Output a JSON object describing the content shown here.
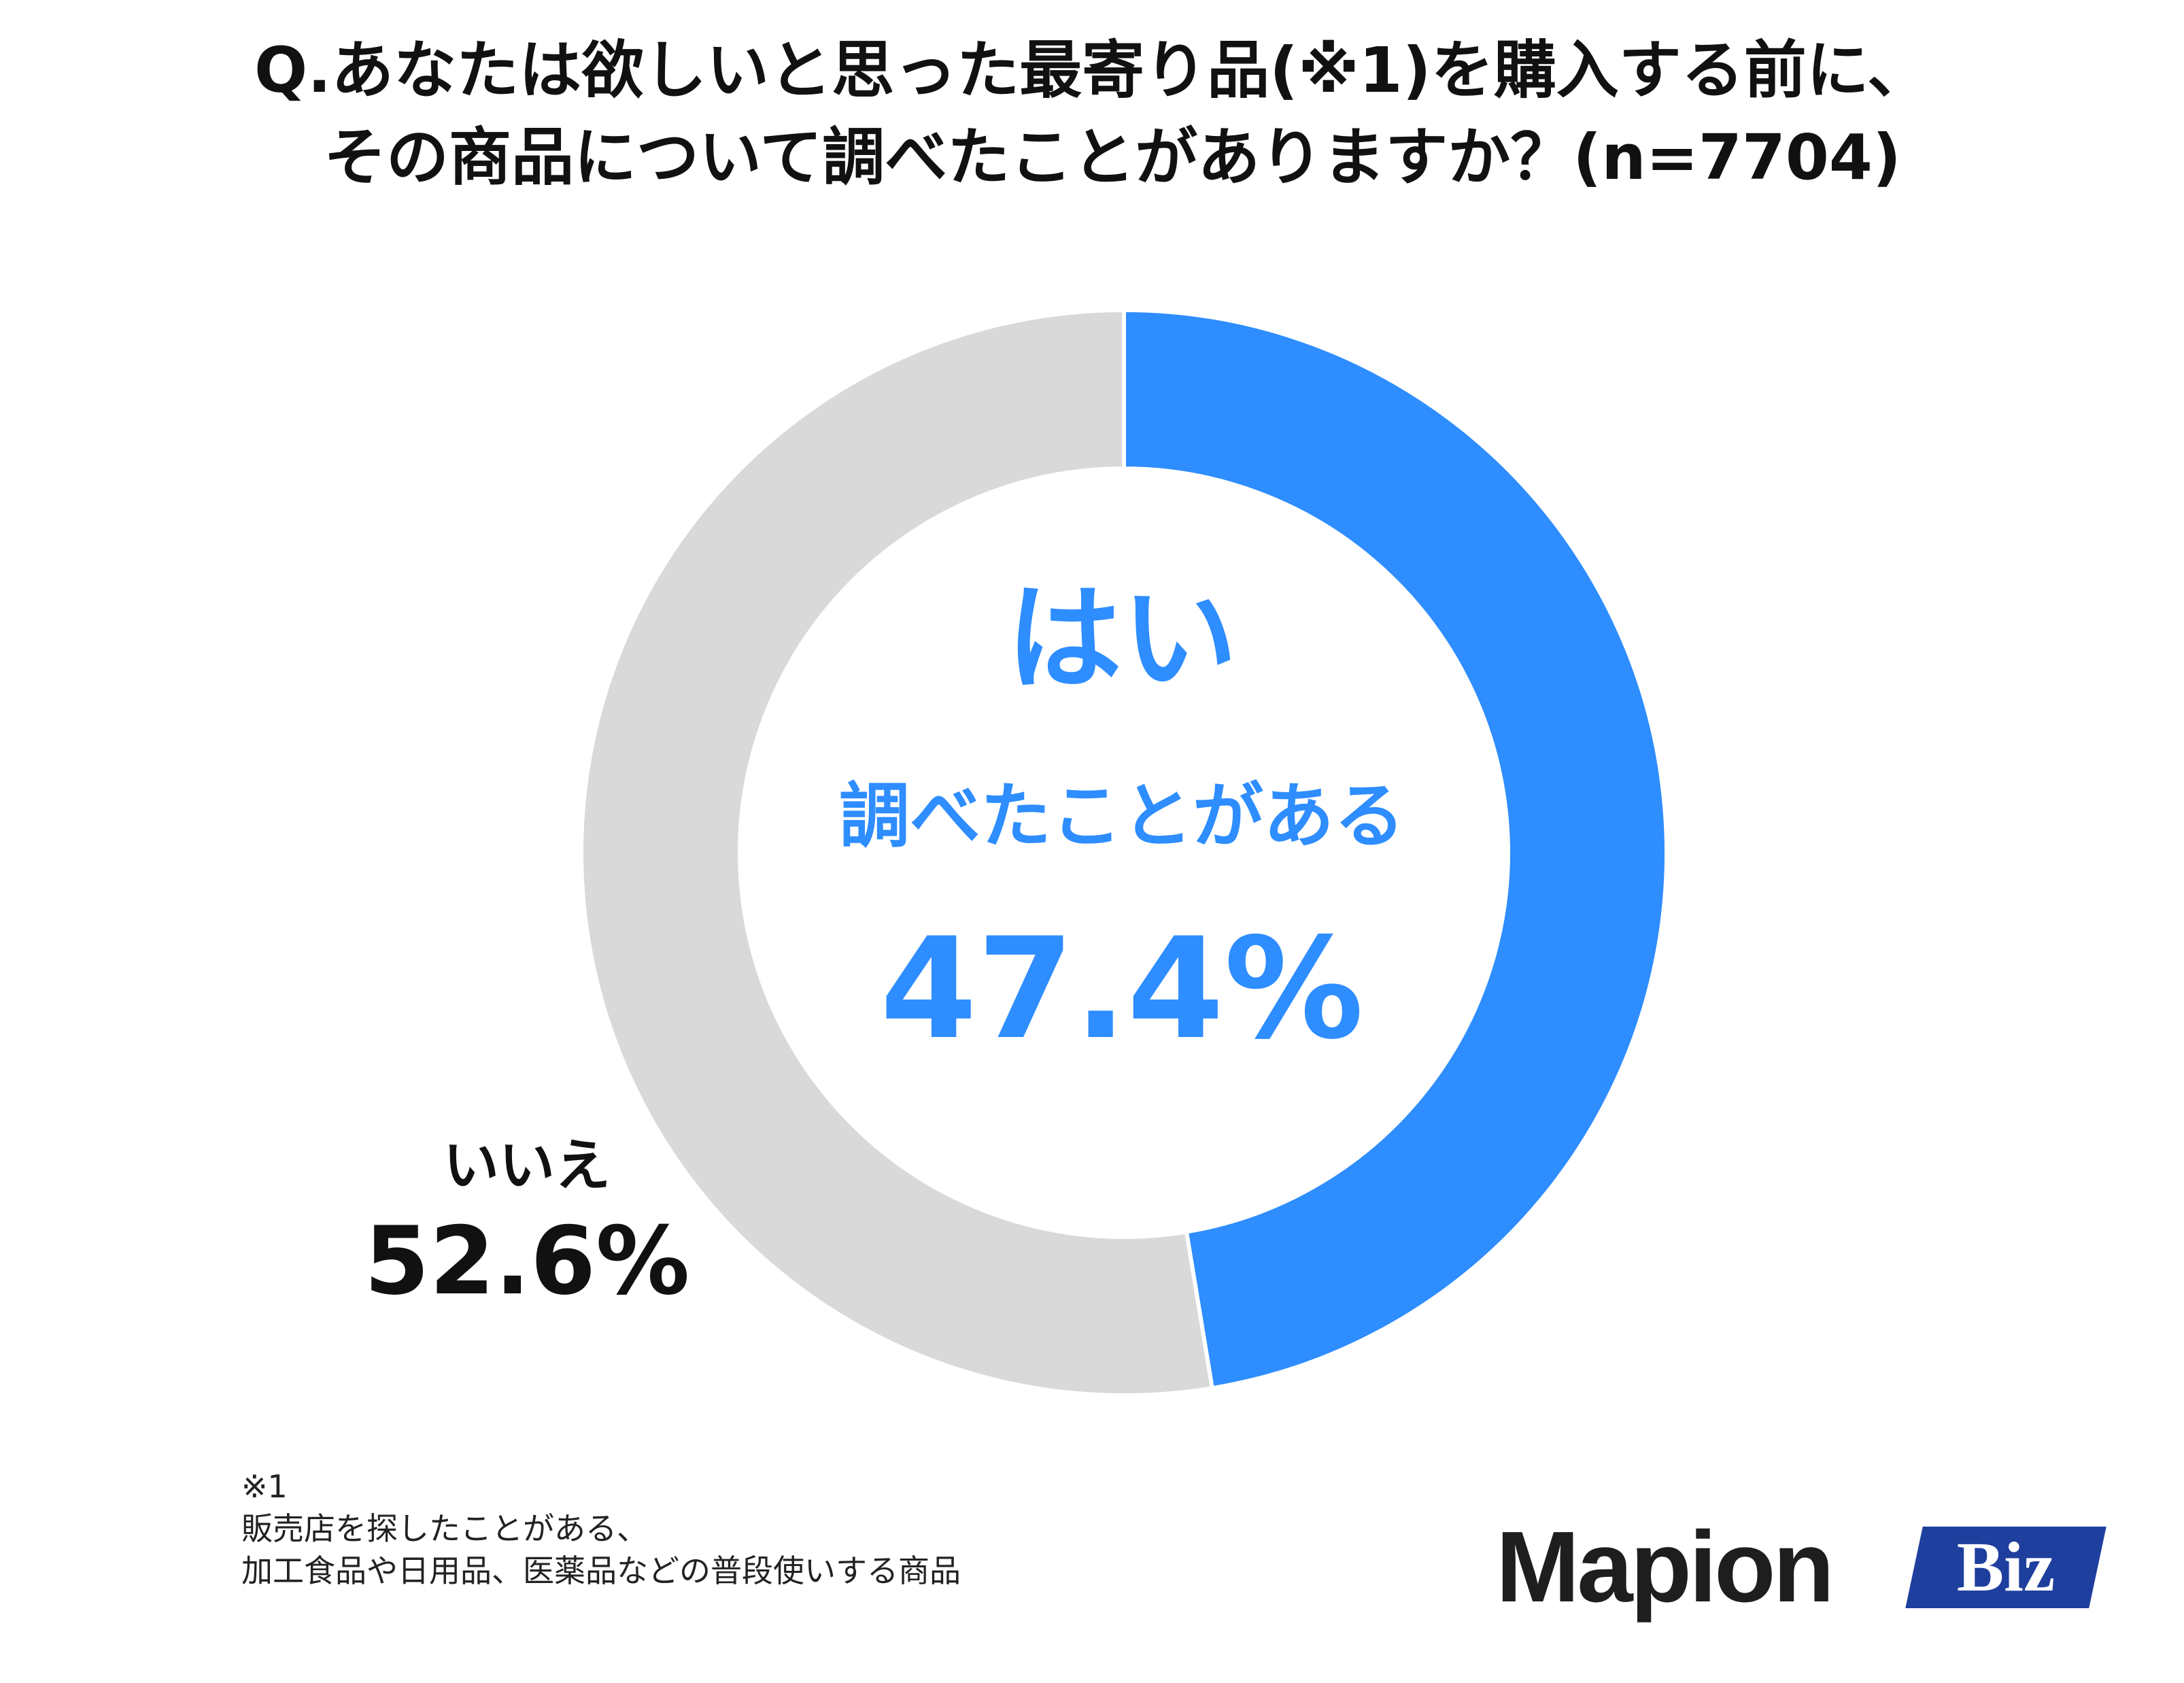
{
  "title": {
    "line1": "Q.あなたは欲しいと思った最寄り品(※1)を購入する前に、",
    "line2": "その商品について調べたことがありますか？(n=7704)"
  },
  "chart_data": {
    "type": "pie",
    "variant": "donut",
    "title": "Q.あなたは欲しいと思った最寄り品(※1)を購入する前に、その商品について調べたことがありますか？(n=7704)",
    "n": 7704,
    "series": [
      {
        "name": "はい",
        "sublabel": "調べたことがある",
        "value": 47.4,
        "value_label": "47.4%",
        "color": "#2e8dff"
      },
      {
        "name": "いいえ",
        "value": 52.6,
        "value_label": "52.6%",
        "color": "#d9d9d9"
      }
    ],
    "start": "top",
    "direction": "clockwise"
  },
  "footnote": {
    "marker": "※1",
    "line1": "販売店を探したことがある、",
    "line2": "加工食品や日用品、医薬品などの普段使いする商品"
  },
  "logo": {
    "word": "Mapion",
    "badge": "Biz",
    "badge_color": "#1f3f9e"
  }
}
